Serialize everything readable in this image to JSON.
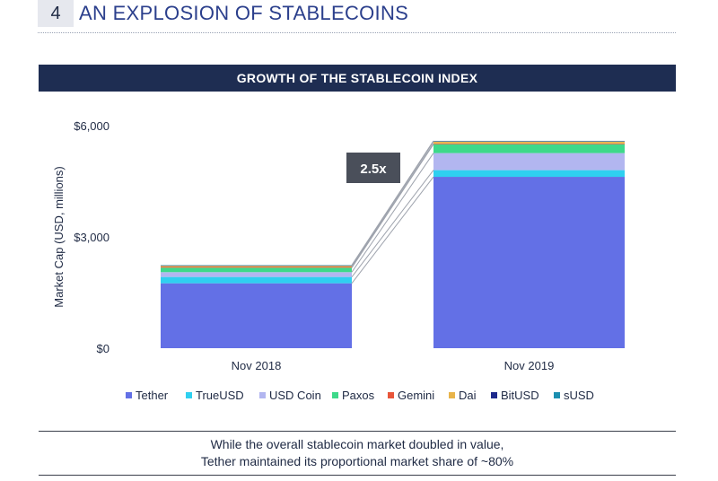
{
  "section": {
    "number": "4",
    "title": "AN EXPLOSION OF STABLECOINS"
  },
  "banner": {
    "title": "GROWTH OF THE STABLECOIN INDEX"
  },
  "callout": {
    "label": "2.5x",
    "bg_color": "#4a4f5a"
  },
  "caption": {
    "line1": "While the overall stablecoin market doubled in value,",
    "line2": "Tether maintained its proportional market share of ~80%"
  },
  "chart_data": {
    "type": "bar",
    "stacked": true,
    "categories": [
      "Nov 2018",
      "Nov 2019"
    ],
    "ylabel": "Market Cap (USD, millions)",
    "ylim": [
      0,
      6000
    ],
    "yticks": [
      0,
      3000,
      6000
    ],
    "ytick_labels": [
      "$0",
      "$3,000",
      "$6,000"
    ],
    "grid": false,
    "legend_position": "bottom",
    "series": [
      {
        "name": "Tether",
        "color": "#6370e6",
        "values": [
          1750,
          4620
        ]
      },
      {
        "name": "TrueUSD",
        "color": "#2fd0f0",
        "values": [
          170,
          180
        ]
      },
      {
        "name": "USD Coin",
        "color": "#b2b6f0",
        "values": [
          130,
          460
        ]
      },
      {
        "name": "Paxos",
        "color": "#3ed98a",
        "values": [
          120,
          240
        ]
      },
      {
        "name": "Gemini",
        "color": "#e8553a",
        "values": [
          20,
          20
        ]
      },
      {
        "name": "Dai",
        "color": "#e8b44a",
        "values": [
          30,
          50
        ]
      },
      {
        "name": "BitUSD",
        "color": "#1e2a8c",
        "values": [
          10,
          10
        ]
      },
      {
        "name": "sUSD",
        "color": "#1c8fb0",
        "values": [
          10,
          10
        ]
      }
    ]
  }
}
